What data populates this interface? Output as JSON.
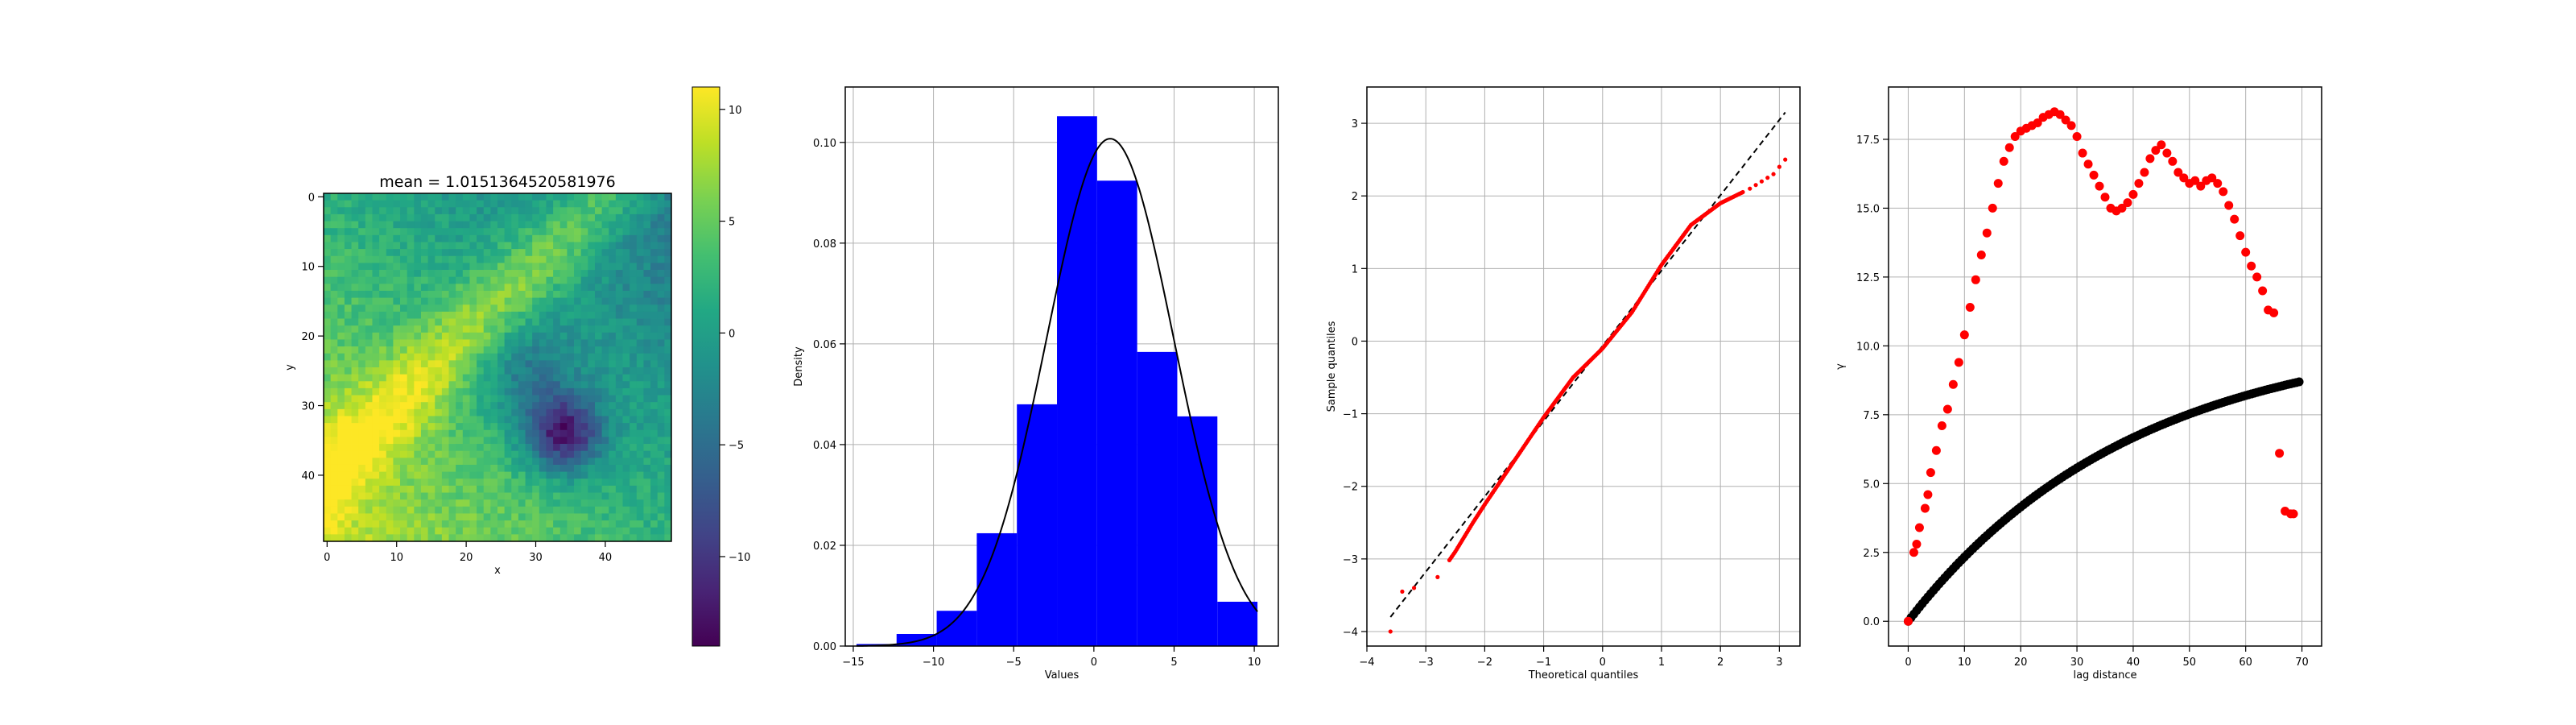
{
  "chart_data": [
    {
      "type": "heatmap",
      "title": "mean = 1.0151364520581976",
      "xlabel": "x",
      "ylabel": "y",
      "xlim": [
        -0.5,
        49.5
      ],
      "ylim": [
        49.5,
        -0.5
      ],
      "xticks": [
        0,
        10,
        20,
        30,
        40
      ],
      "yticks": [
        0,
        10,
        20,
        30,
        40
      ],
      "grid_size": 50,
      "value_range": [
        -14,
        11
      ],
      "colormap": "viridis",
      "features": {
        "trend": "values decrease from lower-left to upper-right along a diagonal band",
        "high_band": "yellow band centred on the diagonal x + y ≈ 40 in the lower-left",
        "low_center": [
          34,
          34
        ],
        "low_value": -14
      },
      "colorbar": {
        "ticks": [
          10,
          5,
          0,
          -5,
          -10
        ],
        "tick_labels": [
          "10",
          "5",
          "0",
          "−5",
          "−10"
        ],
        "range": [
          -14,
          11
        ]
      }
    },
    {
      "type": "bar",
      "subtype": "histogram_with_normal_pdf",
      "xlabel": "Values",
      "ylabel": "Density",
      "xlim": [
        -15.5,
        11.5
      ],
      "ylim": [
        0,
        0.111
      ],
      "xticks": [
        -15,
        -10,
        -5,
        0,
        5,
        10
      ],
      "xtick_labels": [
        "−15",
        "−10",
        "−5",
        "0",
        "5",
        "10"
      ],
      "yticks": [
        0.0,
        0.02,
        0.04,
        0.06,
        0.08,
        0.1
      ],
      "ytick_labels": [
        "0.00",
        "0.02",
        "0.04",
        "0.06",
        "0.08",
        "0.10"
      ],
      "bin_edges": [
        -14.8,
        -12.3,
        -9.8,
        -7.3,
        -4.8,
        -2.3,
        0.2,
        2.7,
        5.2,
        7.7,
        10.2
      ],
      "densities": [
        0.0004,
        0.0024,
        0.007,
        0.0224,
        0.048,
        0.1052,
        0.0924,
        0.0584,
        0.0456,
        0.0088
      ],
      "bar_color": "#0000ff",
      "pdf": {
        "mean": 1.015,
        "std": 3.96,
        "color": "#000000"
      },
      "grid": true
    },
    {
      "type": "scatter",
      "subtype": "qq_plot",
      "xlabel": "Theoretical quantiles",
      "ylabel": "Sample quantiles",
      "xlim": [
        -4.0,
        3.35
      ],
      "ylim": [
        -4.2,
        3.5
      ],
      "xticks": [
        -4,
        -3,
        -2,
        -1,
        0,
        1,
        2,
        3
      ],
      "xtick_labels": [
        "−4",
        "−3",
        "−2",
        "−1",
        "0",
        "1",
        "2",
        "3"
      ],
      "yticks": [
        -4,
        -3,
        -2,
        -1,
        0,
        1,
        2,
        3
      ],
      "ytick_labels": [
        "−4",
        "−3",
        "−2",
        "−1",
        "0",
        "1",
        "2",
        "3"
      ],
      "reference_line": {
        "x": [
          -3.6,
          3.1
        ],
        "y": [
          -3.8,
          3.15
        ],
        "style": "dashed",
        "color": "#000000"
      },
      "points_sample": [
        [
          -3.6,
          -4.0
        ],
        [
          -3.4,
          -3.45
        ],
        [
          -3.2,
          -3.4
        ],
        [
          -2.8,
          -3.25
        ],
        [
          -2.5,
          -2.9
        ],
        [
          -2.2,
          -2.5
        ],
        [
          -2.0,
          -2.25
        ],
        [
          -1.5,
          -1.65
        ],
        [
          -1.0,
          -1.05
        ],
        [
          -0.5,
          -0.5
        ],
        [
          0.0,
          -0.1
        ],
        [
          0.5,
          0.4
        ],
        [
          1.0,
          1.05
        ],
        [
          1.5,
          1.6
        ],
        [
          2.0,
          1.9
        ],
        [
          2.5,
          2.1
        ],
        [
          2.9,
          2.3
        ],
        [
          3.1,
          2.5
        ]
      ],
      "point_color": "#ff0000",
      "grid": true
    },
    {
      "type": "scatter",
      "subtype": "variogram",
      "xlabel": "lag distance",
      "ylabel": "γ",
      "xlim": [
        -3.5,
        73.5
      ],
      "ylim": [
        -0.9,
        19.4
      ],
      "xticks": [
        0,
        10,
        20,
        30,
        40,
        50,
        60,
        70
      ],
      "yticks": [
        0.0,
        2.5,
        5.0,
        7.5,
        10.0,
        12.5,
        15.0,
        17.5
      ],
      "ytick_labels": [
        "0.0",
        "2.5",
        "5.0",
        "7.5",
        "10.0",
        "12.5",
        "15.0",
        "17.5"
      ],
      "series": [
        {
          "color": "#ff0000",
          "x": [
            0.0,
            1.0,
            1.5,
            2.0,
            3.0,
            3.5,
            4.0,
            5.0,
            6.0,
            7.0,
            8.0,
            9.0,
            10.0,
            11.0,
            12.0,
            13.0,
            14.0,
            15.0,
            16.0,
            17.0,
            18.0,
            19.0,
            20.0,
            21.0,
            22.0,
            23.0,
            24.0,
            25.0,
            26.0,
            27.0,
            28.0,
            29.0,
            30.0,
            31.0,
            32.0,
            33.0,
            34.0,
            35.0,
            36.0,
            37.0,
            38.0,
            39.0,
            40.0,
            41.0,
            42.0,
            43.0,
            44.0,
            45.0,
            46.0,
            47.0,
            48.0,
            49.0,
            50.0,
            51.0,
            52.0,
            53.0,
            54.0,
            55.0,
            56.0,
            57.0,
            58.0,
            59.0,
            60.0,
            61.0,
            62.0,
            63.0,
            64.0,
            65.0,
            66.0,
            67.0,
            68.0,
            68.5
          ],
          "y": [
            0.0,
            2.5,
            2.8,
            3.4,
            4.1,
            4.6,
            5.4,
            6.2,
            7.1,
            7.7,
            8.6,
            9.4,
            10.4,
            11.4,
            12.4,
            13.3,
            14.1,
            15.0,
            15.9,
            16.7,
            17.2,
            17.6,
            17.8,
            17.9,
            18.0,
            18.1,
            18.3,
            18.4,
            18.5,
            18.4,
            18.2,
            18.0,
            17.6,
            17.0,
            16.6,
            16.2,
            15.8,
            15.4,
            15.0,
            14.9,
            15.0,
            15.2,
            15.5,
            15.9,
            16.3,
            16.8,
            17.1,
            17.3,
            17.0,
            16.7,
            16.3,
            16.1,
            15.9,
            16.0,
            15.8,
            16.0,
            16.1,
            15.9,
            15.6,
            15.1,
            14.6,
            14.0,
            13.4,
            12.9,
            12.5,
            12.0,
            11.3,
            11.2,
            6.1,
            4.0,
            3.9,
            3.9
          ]
        },
        {
          "color": "#000000",
          "model": "exponential",
          "x_range": [
            0,
            69.5
          ],
          "params": {
            "sill": 10.55,
            "range": 40.0
          },
          "x_sample": [
            0,
            10,
            20,
            30,
            40,
            50,
            60,
            69.5
          ],
          "y_sample": [
            0.0,
            2.33,
            4.14,
            5.56,
            6.67,
            7.54,
            8.21,
            8.75
          ]
        }
      ],
      "grid": true
    }
  ]
}
